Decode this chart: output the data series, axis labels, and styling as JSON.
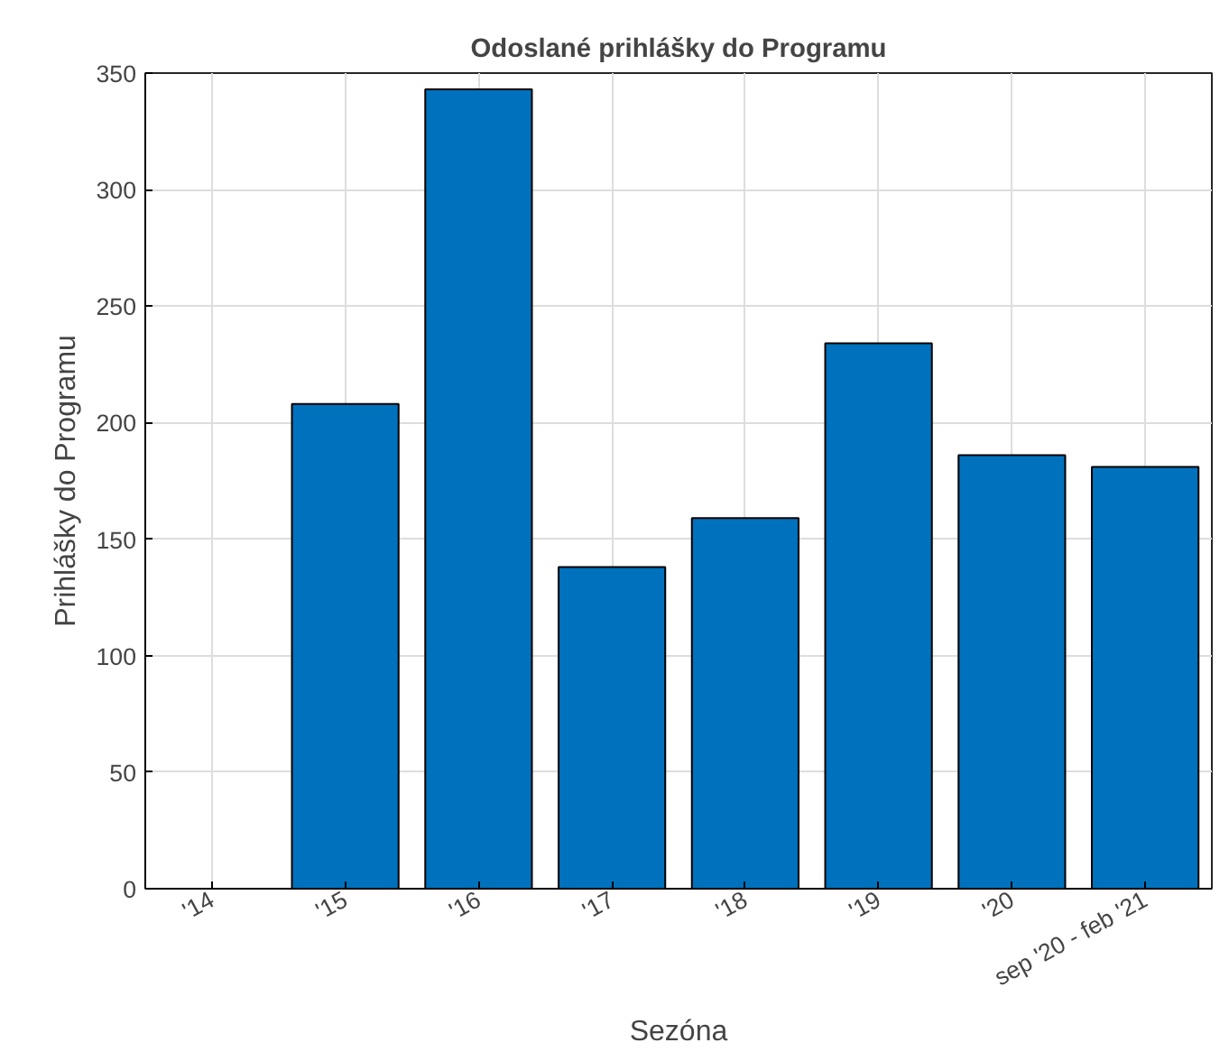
{
  "chart_data": {
    "type": "bar",
    "title": "Odoslané prihlášky do Programu",
    "xlabel": "Sezóna",
    "ylabel": "Prihlášky do Programu",
    "categories": [
      "'14",
      "'15",
      "'16",
      "'17",
      "'18",
      "'19",
      "'20",
      "sep '20 - feb '21"
    ],
    "values": [
      null,
      208,
      343,
      138,
      159,
      234,
      186,
      181
    ],
    "color": "#0072bd",
    "ylim": [
      0,
      350
    ],
    "yticks": [
      0,
      50,
      100,
      150,
      200,
      250,
      300,
      350
    ],
    "grid": true
  }
}
